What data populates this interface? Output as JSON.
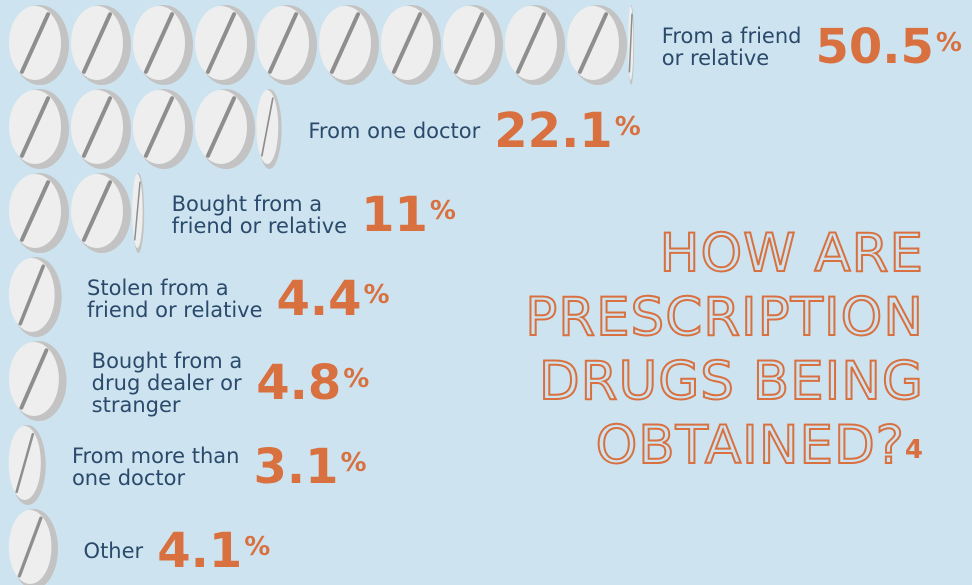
{
  "chart_data": {
    "type": "bar",
    "title": "HOW ARE PRESCRIPTION DRUGS BEING OBTAINED?",
    "title_footnote": "4",
    "unit": "%",
    "categories": [
      "From a friend or relative",
      "From one doctor",
      "Bought from a friend or relative",
      "Stolen from a friend or relative",
      "Bought from a drug dealer or stranger",
      "From more than one doctor",
      "Other"
    ],
    "values": [
      50.5,
      22.1,
      11,
      4.4,
      4.8,
      3.1,
      4.1
    ],
    "value_labels": [
      "50.5",
      "22.1",
      "11",
      "4.4",
      "4.8",
      "3.1",
      "4.1"
    ],
    "pill_unit_percent": 5,
    "colors": {
      "background": "#cde4f0",
      "pill_face": "#eeeeee",
      "pill_side": "#c3c3c3",
      "pill_score": "#8e8e8e",
      "accent": "#d9703f",
      "label_text": "#2b4a6b"
    }
  },
  "headline": {
    "lines": [
      "HOW ARE",
      "PRESCRIPTION",
      "DRUGS BEING",
      "OBTAINED?"
    ],
    "footnote": "4"
  }
}
